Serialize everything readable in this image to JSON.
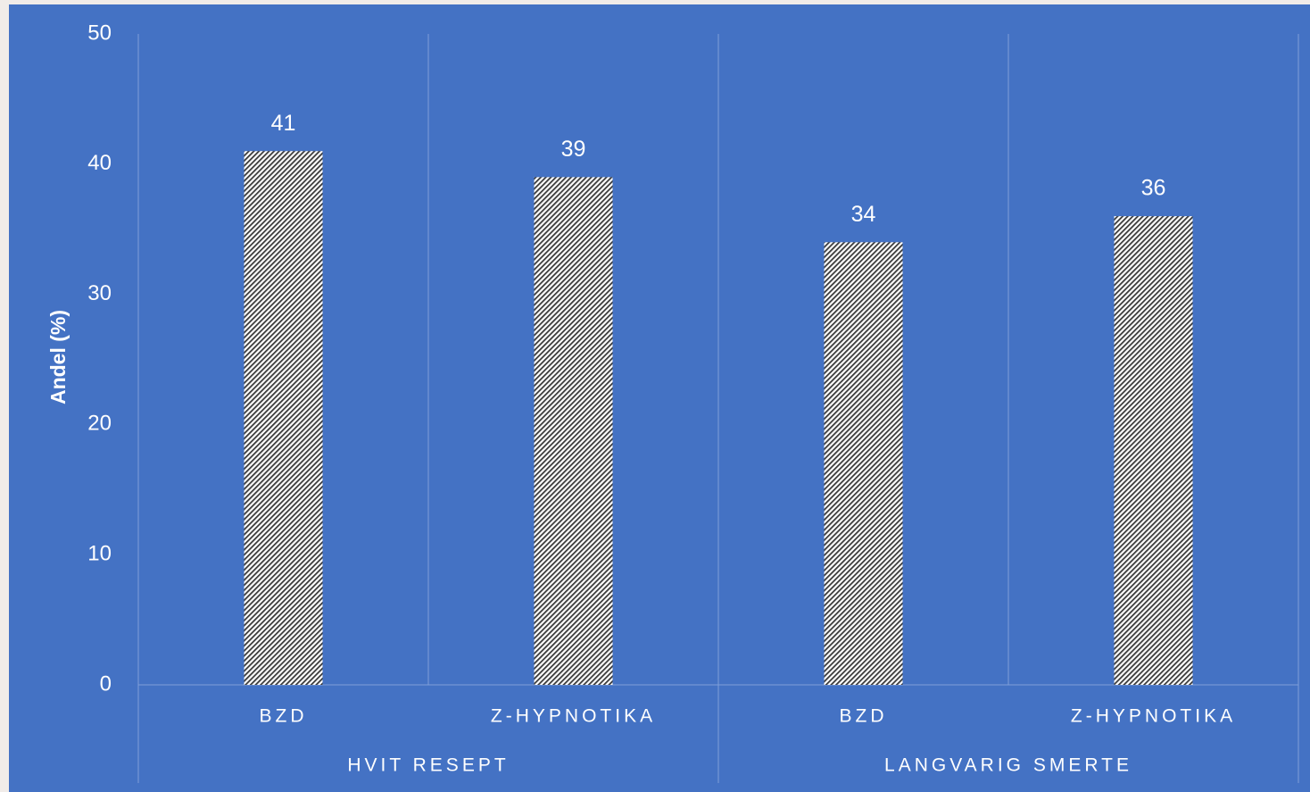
{
  "chart_data": {
    "type": "bar",
    "y_label": "Andel (%)",
    "categories": [
      "BZD",
      "Z-HYPNOTIKA",
      "BZD",
      "Z-HYPNOTIKA"
    ],
    "groups": [
      "HVIT RESEPT",
      "LANGVARIG SMERTE"
    ],
    "values": [
      41,
      39,
      34,
      36
    ],
    "color": "#ffffff",
    "hatch_color": "#3a3a3a",
    "background": "#4472c4",
    "ylim": [
      0,
      50
    ],
    "yticks": [
      0,
      10,
      20,
      30,
      40,
      50
    ],
    "grid": false
  }
}
